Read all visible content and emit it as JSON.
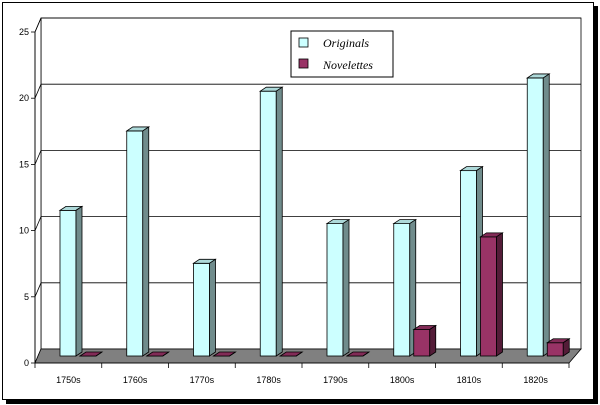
{
  "chart_data": {
    "type": "bar",
    "categories": [
      "1750s",
      "1760s",
      "1770s",
      "1780s",
      "1790s",
      "1800s",
      "1810s",
      "1820s"
    ],
    "series": [
      {
        "name": "Originals",
        "values": [
          11,
          17,
          7,
          20,
          10,
          10,
          14,
          21
        ],
        "color": "#ccffff"
      },
      {
        "name": "Novelettes",
        "values": [
          0,
          0,
          0,
          0,
          0,
          2,
          9,
          1
        ],
        "color": "#993366"
      }
    ],
    "y_ticks": [
      "0",
      "5",
      "10",
      "15",
      "20",
      "25"
    ],
    "ylim": [
      0,
      25
    ],
    "grid": true,
    "legend_position": "top-center",
    "three_d": true
  }
}
